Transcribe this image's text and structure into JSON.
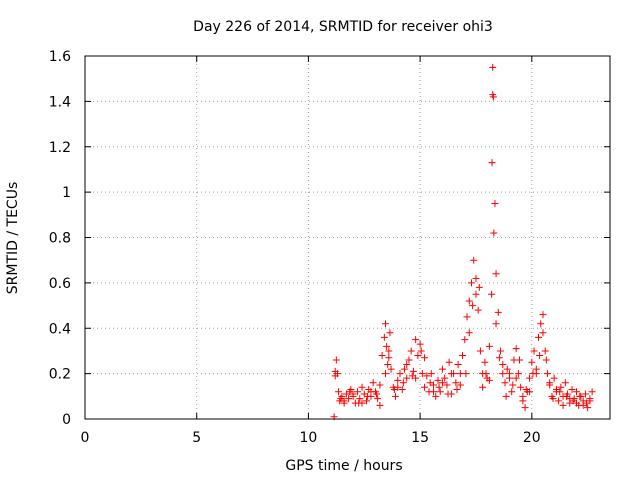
{
  "chart_data": {
    "type": "scatter",
    "title": "Day 226 of 2014, SRMTID for receiver ohi3",
    "xlabel": "GPS time / hours",
    "ylabel": "SRMTID / TECUs",
    "xlim": [
      0,
      23.5
    ],
    "ylim": [
      0,
      1.6
    ],
    "xticks": [
      0,
      5,
      10,
      15,
      20
    ],
    "yticks": [
      0,
      0.2,
      0.4,
      0.6,
      0.8,
      1,
      1.2,
      1.4,
      1.6
    ],
    "ytick_labels": [
      "0",
      "0.2",
      "0.4",
      "0.6",
      "0.8",
      "1",
      "1.2",
      "1.4",
      "1.6"
    ],
    "grid": true,
    "marker": "+",
    "marker_color": "#ff0000",
    "series": [
      {
        "name": "SRMTID",
        "x": [
          11.15,
          11.2,
          11.25,
          11.3,
          11.35,
          11.4,
          11.5,
          11.6,
          11.7,
          11.8,
          11.9,
          12.0,
          12.1,
          12.2,
          12.3,
          12.4,
          12.5,
          12.6,
          12.7,
          12.8,
          12.9,
          13.0,
          13.1,
          13.2,
          13.3,
          13.4,
          13.45,
          13.5,
          13.55,
          13.6,
          13.65,
          13.7,
          13.8,
          13.9,
          14.0,
          14.1,
          14.2,
          14.3,
          14.4,
          14.5,
          14.6,
          14.7,
          14.8,
          14.9,
          15.0,
          15.1,
          15.2,
          15.3,
          15.4,
          15.5,
          15.6,
          15.7,
          15.8,
          15.9,
          16.0,
          16.1,
          16.2,
          16.3,
          16.4,
          16.5,
          16.6,
          16.7,
          16.8,
          16.9,
          17.0,
          17.1,
          17.2,
          17.3,
          17.4,
          17.5,
          17.6,
          17.7,
          17.8,
          17.9,
          18.0,
          18.1,
          18.2,
          18.22,
          18.25,
          18.28,
          18.3,
          18.35,
          18.4,
          18.5,
          18.6,
          18.7,
          18.8,
          18.9,
          19.0,
          19.1,
          19.2,
          19.3,
          19.4,
          19.5,
          19.6,
          19.7,
          19.8,
          19.9,
          20.0,
          20.1,
          20.2,
          20.3,
          20.4,
          20.5,
          20.6,
          20.7,
          20.8,
          20.9,
          21.0,
          21.1,
          21.2,
          21.3,
          21.4,
          21.5,
          21.6,
          21.7,
          21.8,
          21.9,
          22.0,
          22.1,
          22.2,
          22.3,
          22.4,
          22.5,
          22.6,
          22.7,
          11.2,
          11.6,
          12.0,
          12.4,
          12.8,
          13.2,
          13.6,
          14.0,
          14.4,
          14.8,
          15.2,
          15.6,
          16.0,
          16.4,
          16.8,
          17.2,
          17.5,
          17.8,
          18.1,
          18.4,
          18.7,
          19.0,
          19.3,
          19.6,
          19.9,
          20.2,
          20.5,
          20.8,
          21.1,
          21.4,
          21.7,
          22.0,
          22.3,
          22.6,
          11.45,
          11.85,
          12.25,
          12.65,
          13.05,
          13.45,
          13.85,
          14.25,
          14.65,
          15.05,
          15.45,
          15.85,
          16.25,
          16.65,
          17.05,
          17.35,
          17.65,
          17.95,
          18.25,
          18.55,
          18.85,
          19.15,
          19.45,
          19.75,
          20.05,
          20.35,
          20.65,
          20.95,
          21.25,
          21.55,
          21.85,
          22.15,
          22.45
        ],
        "y": [
          0.01,
          0.21,
          0.26,
          0.2,
          0.12,
          0.08,
          0.1,
          0.07,
          0.11,
          0.09,
          0.13,
          0.1,
          0.07,
          0.12,
          0.09,
          0.14,
          0.11,
          0.08,
          0.13,
          0.1,
          0.16,
          0.12,
          0.09,
          0.15,
          0.28,
          0.36,
          0.42,
          0.32,
          0.24,
          0.3,
          0.38,
          0.22,
          0.14,
          0.1,
          0.17,
          0.2,
          0.13,
          0.22,
          0.18,
          0.26,
          0.3,
          0.21,
          0.35,
          0.28,
          0.33,
          0.2,
          0.14,
          0.19,
          0.12,
          0.2,
          0.15,
          0.1,
          0.17,
          0.12,
          0.22,
          0.18,
          0.15,
          0.25,
          0.11,
          0.2,
          0.16,
          0.24,
          0.2,
          0.28,
          0.35,
          0.45,
          0.52,
          0.6,
          0.7,
          0.55,
          0.48,
          0.3,
          0.2,
          0.25,
          0.18,
          0.32,
          0.55,
          1.13,
          1.55,
          1.42,
          0.82,
          0.95,
          0.64,
          0.47,
          0.3,
          0.2,
          0.16,
          0.22,
          0.18,
          0.12,
          0.26,
          0.31,
          0.2,
          0.14,
          0.08,
          0.05,
          0.12,
          0.18,
          0.25,
          0.3,
          0.2,
          0.36,
          0.42,
          0.46,
          0.3,
          0.2,
          0.15,
          0.1,
          0.18,
          0.12,
          0.08,
          0.14,
          0.1,
          0.16,
          0.11,
          0.07,
          0.13,
          0.09,
          0.12,
          0.06,
          0.1,
          0.08,
          0.11,
          0.05,
          0.09,
          0.12,
          0.19,
          0.08,
          0.11,
          0.07,
          0.12,
          0.06,
          0.27,
          0.14,
          0.24,
          0.18,
          0.27,
          0.12,
          0.16,
          0.2,
          0.15,
          0.38,
          0.62,
          0.14,
          0.17,
          0.42,
          0.24,
          0.2,
          0.18,
          0.1,
          0.12,
          0.22,
          0.38,
          0.16,
          0.13,
          0.06,
          0.09,
          0.07,
          0.06,
          0.08,
          0.09,
          0.12,
          0.07,
          0.1,
          0.11,
          0.2,
          0.13,
          0.16,
          0.19,
          0.3,
          0.16,
          0.14,
          0.11,
          0.13,
          0.2,
          0.5,
          0.58,
          0.2,
          1.43,
          0.27,
          0.1,
          0.15,
          0.26,
          0.13,
          0.2,
          0.28,
          0.26,
          0.09,
          0.12,
          0.1,
          0.08,
          0.1,
          0.07
        ]
      }
    ]
  }
}
